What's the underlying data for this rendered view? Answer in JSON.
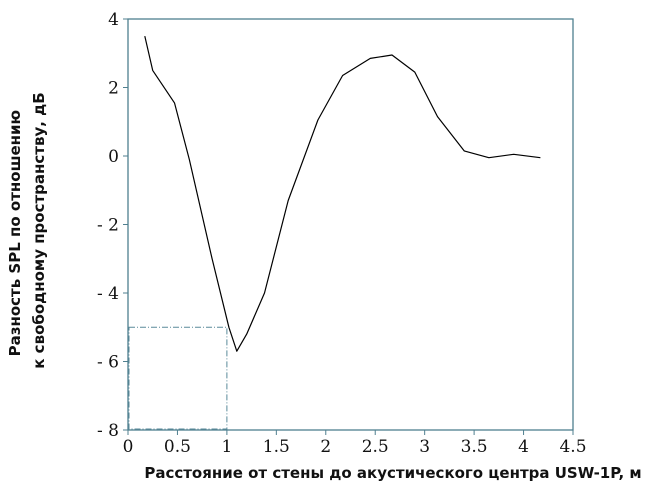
{
  "chart_data": {
    "type": "line",
    "title": "",
    "xlabel": "Расстояние от стены до акустического центра USW-1P, м",
    "ylabel_lines": [
      "Разность SPL по отношению",
      "к свободному пространству, дБ"
    ],
    "xlim": [
      0,
      4.5
    ],
    "ylim": [
      -8,
      4
    ],
    "x_ticks": [
      0,
      0.5,
      1,
      1.5,
      2,
      2.5,
      3,
      3.5,
      4,
      4.5
    ],
    "x_tick_labels": [
      "0",
      "0.5",
      "1",
      "1.5",
      "2",
      "2.5",
      "3",
      "3.5",
      "4",
      "4.5"
    ],
    "y_ticks": [
      4,
      2,
      0,
      -2,
      -4,
      -6,
      -8
    ],
    "y_tick_labels": [
      "4",
      "2",
      "0",
      "- 2",
      "- 4",
      "- 6",
      "- 8"
    ],
    "grid": false,
    "legend": "none",
    "series": [
      {
        "x": [
          0.17,
          0.25,
          0.47,
          0.62,
          0.85,
          1.02,
          1.1,
          1.2,
          1.38,
          1.62,
          1.92,
          2.17,
          2.45,
          2.67,
          2.9,
          3.13,
          3.4,
          3.65,
          3.9,
          4.17
        ],
        "values": [
          3.5,
          2.5,
          1.55,
          -0.1,
          -3.0,
          -5.0,
          -5.7,
          -5.2,
          -4.0,
          -1.3,
          1.05,
          2.35,
          2.85,
          2.95,
          2.45,
          1.15,
          0.15,
          -0.05,
          0.05,
          -0.05
        ],
        "color": "#000000"
      }
    ],
    "highlight_region": {
      "x": [
        0,
        1
      ],
      "y": [
        -8,
        -5
      ],
      "color": "#5a8a9a"
    },
    "frame_color": "#4f7f8f"
  }
}
